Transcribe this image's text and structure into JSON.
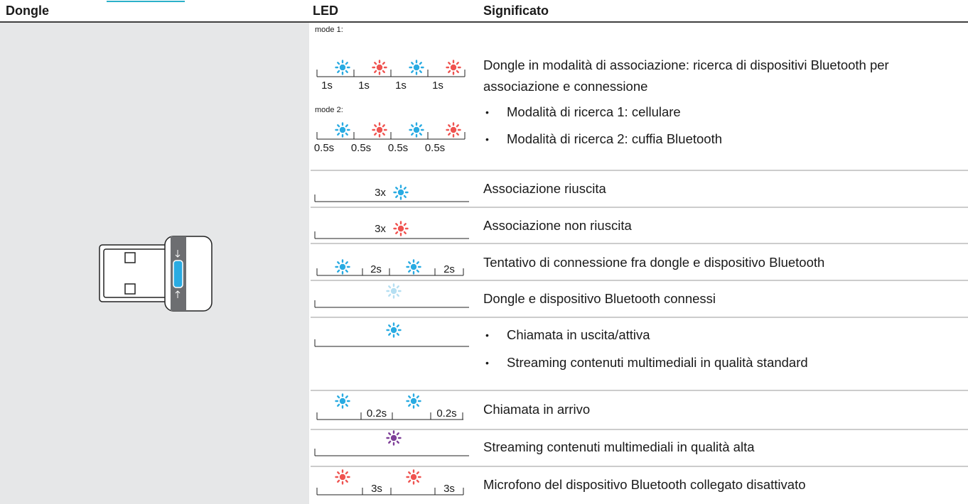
{
  "header": {
    "dongle": "Dongle",
    "led": "LED",
    "meaning": "Significato"
  },
  "rows": [
    {
      "led": {
        "mode1": "mode 1:",
        "mode1_times": [
          "1s",
          "1s",
          "1s",
          "1s"
        ],
        "mode2": "mode 2:",
        "mode2_times": [
          "0.5s",
          "0.5s",
          "0.5s",
          "0.5s"
        ]
      },
      "meaning": "Dongle in modalità di associazione: ricerca di dispositivi Bluetooth per associazione e connessione",
      "bullets": [
        "Modalità di ricerca 1: cellulare",
        "Modalità di ricerca 2: cuffia Bluetooth"
      ]
    },
    {
      "led": {
        "count": "3x"
      },
      "meaning": "Associazione riuscita"
    },
    {
      "led": {
        "count": "3x"
      },
      "meaning": "Associazione non riuscita"
    },
    {
      "led": {
        "times": [
          "2s",
          "2s"
        ]
      },
      "meaning": "Tentativo di connessione fra dongle e dispositivo Bluetooth"
    },
    {
      "meaning": "Dongle e dispositivo Bluetooth connessi"
    },
    {
      "bullets": [
        "Chiamata in uscita/attiva",
        "Streaming contenuti multimediali in qualità standard"
      ]
    },
    {
      "led": {
        "times": [
          "0.2s",
          "0.2s"
        ]
      },
      "meaning": "Chiamata in arrivo"
    },
    {
      "meaning": "Streaming contenuti multimediali in qualità alta"
    },
    {
      "led": {
        "times": [
          "3s",
          "3s"
        ]
      },
      "meaning": "Microfono del dispositivo Bluetooth collegato disattivato"
    }
  ]
}
